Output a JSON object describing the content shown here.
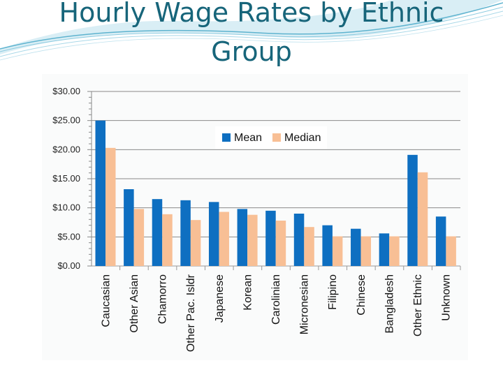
{
  "slide": {
    "title": "Hourly Wage Rates by Ethnic Group"
  },
  "chart_data": {
    "type": "bar",
    "title": "",
    "xlabel": "",
    "ylabel": "",
    "ylim": [
      0,
      30
    ],
    "yticks": [
      "$0.00",
      "$5.00",
      "$10.00",
      "$15.00",
      "$20.00",
      "$25.00",
      "$30.00"
    ],
    "categories": [
      "Caucasian",
      "Other Asian",
      "Chamorro",
      "Other Pac. Isldr",
      "Japanese",
      "Korean",
      "Carolinian",
      "Micronesian",
      "Filipino",
      "Chinese",
      "Bangladesh",
      "Other Ethnic",
      "Unknown"
    ],
    "series": [
      {
        "name": "Mean",
        "color": "#0e6fc1",
        "values": [
          25.0,
          13.2,
          11.5,
          11.3,
          11.0,
          9.8,
          9.5,
          9.0,
          7.0,
          6.4,
          5.6,
          19.1,
          8.5
        ]
      },
      {
        "name": "Median",
        "color": "#f8bf95",
        "values": [
          20.3,
          9.8,
          8.9,
          7.9,
          9.3,
          8.8,
          7.8,
          6.7,
          5.1,
          5.1,
          5.1,
          16.1,
          5.1
        ]
      }
    ],
    "grid": true,
    "legend": "top-center"
  }
}
